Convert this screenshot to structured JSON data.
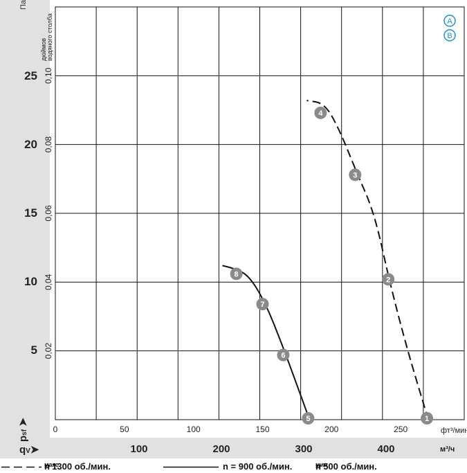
{
  "chart_data": {
    "type": "line",
    "y_primary": {
      "unit": "Па",
      "ticks": [
        "5",
        "10",
        "15",
        "20",
        "25"
      ],
      "ylim": [
        0,
        30
      ]
    },
    "y_secondary": {
      "unit": "дюймов водяного столба",
      "ticks": [
        "0,02",
        "0,04",
        "0,06",
        "0,08",
        "0,10"
      ]
    },
    "x_primary": {
      "unit": "фт³/мин",
      "ticks": [
        "0",
        "50",
        "100",
        "150",
        "200",
        "250"
      ],
      "xlim": [
        0,
        296
      ]
    },
    "x_secondary": {
      "unit": "м³/ч",
      "ticks": [
        "100",
        "200",
        "300",
        "400"
      ]
    },
    "y_symbol": "p",
    "y_symbol_sub": "sf",
    "x_symbol": "q",
    "x_symbol_sub": "V",
    "markers": [
      "A",
      "B"
    ],
    "series": [
      {
        "name": "n макс = 1300 об./мин.",
        "style": "dashed",
        "x": [
          270,
          255,
          242,
          231,
          218,
          206,
          195,
          182
        ],
        "y": [
          0,
          5,
          10,
          15,
          18,
          21,
          23,
          23.2
        ],
        "points": [
          {
            "label": "1",
            "x": 269,
            "y": 0.1
          },
          {
            "label": "2",
            "x": 241,
            "y": 10.2
          },
          {
            "label": "3",
            "x": 217,
            "y": 17.8
          },
          {
            "label": "4",
            "x": 192,
            "y": 22.3
          }
        ]
      },
      {
        "name": "n = 900 об./мин.",
        "style": "solid",
        "x": [
          184,
          175,
          164,
          152,
          140,
          129,
          121
        ],
        "y": [
          0,
          2.5,
          5.5,
          8.5,
          10.5,
          11.0,
          11.2
        ],
        "points": [
          {
            "label": "5",
            "x": 183,
            "y": 0.1
          },
          {
            "label": "6",
            "x": 165,
            "y": 4.7
          },
          {
            "label": "7",
            "x": 150,
            "y": 8.4
          },
          {
            "label": "8",
            "x": 131,
            "y": 10.6
          }
        ]
      }
    ],
    "legend": {
      "prefix1": "n",
      "sub1": "макс",
      "rest1": "= 1300 об./мин.",
      "prefix2": "n = 900 об./мин.",
      "prefix3": "n",
      "sub3": "мин",
      "rest3": "= 500 об./мин."
    }
  }
}
